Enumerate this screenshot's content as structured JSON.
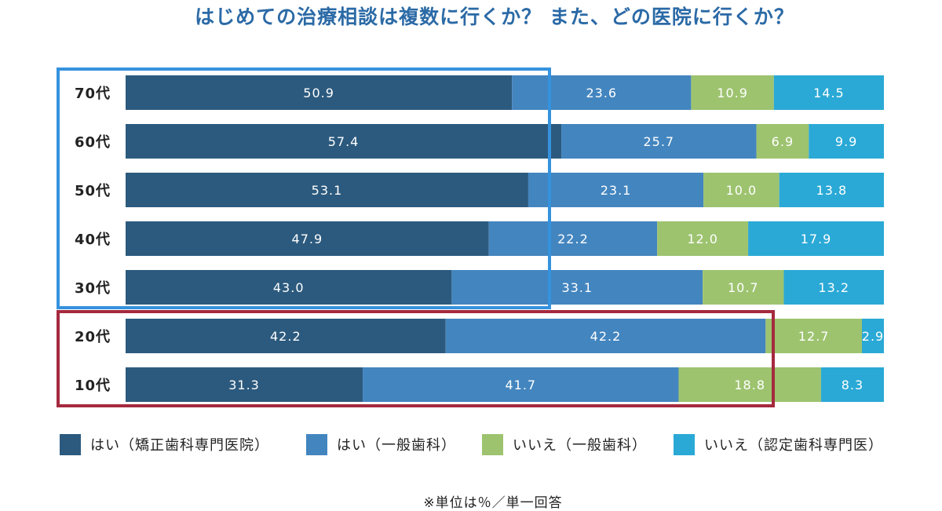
{
  "title": "はじめての治療相談は複数に行くか？ また、どの医院に行くか？",
  "note": "※単位は％／単一回答",
  "colors": {
    "series": [
      "#2c5a7e",
      "#4385bf",
      "#9dc36f",
      "#2aa9d6"
    ],
    "highlight_blue": "#3592de",
    "highlight_red": "#a52a3e"
  },
  "chart_data": {
    "type": "bar",
    "orientation": "horizontal",
    "stacked": true,
    "categories": [
      "70代",
      "60代",
      "50代",
      "40代",
      "30代",
      "20代",
      "10代"
    ],
    "series": [
      {
        "name": "はい（矯正歯科専門医院）",
        "values": [
          50.9,
          57.4,
          53.1,
          47.9,
          43.0,
          42.2,
          31.3
        ]
      },
      {
        "name": "はい（一般歯科）",
        "values": [
          23.6,
          25.7,
          23.1,
          22.2,
          33.1,
          42.2,
          41.7
        ]
      },
      {
        "name": "いいえ（一般歯科）",
        "values": [
          10.9,
          6.9,
          10.0,
          12.0,
          10.7,
          12.7,
          18.8
        ]
      },
      {
        "name": "いいえ（認定歯科専門医）",
        "values": [
          14.5,
          9.9,
          13.8,
          17.9,
          13.2,
          2.9,
          8.3
        ]
      }
    ],
    "data_labels": [
      [
        "50.9",
        "23.6",
        "10.9",
        "14.5"
      ],
      [
        "57.4",
        "25.7",
        "6.9",
        "9.9"
      ],
      [
        "53.1",
        "23.1",
        "10.0",
        "13.8"
      ],
      [
        "47.9",
        "22.2",
        "12.0",
        "17.9"
      ],
      [
        "43.0",
        "33.1",
        "10.7",
        "13.2"
      ],
      [
        "42.2",
        "42.2",
        "12.7",
        "2.9"
      ],
      [
        "31.3",
        "41.7",
        "18.8",
        "8.3"
      ]
    ],
    "xlim": [
      0,
      100
    ],
    "grid": false,
    "legend_position": "bottom",
    "highlight_groups": [
      {
        "categories": [
          "70代",
          "60代",
          "50代",
          "40代",
          "30代"
        ],
        "color": "highlight_blue"
      },
      {
        "categories": [
          "20代",
          "10代"
        ],
        "color": "highlight_red"
      }
    ]
  }
}
